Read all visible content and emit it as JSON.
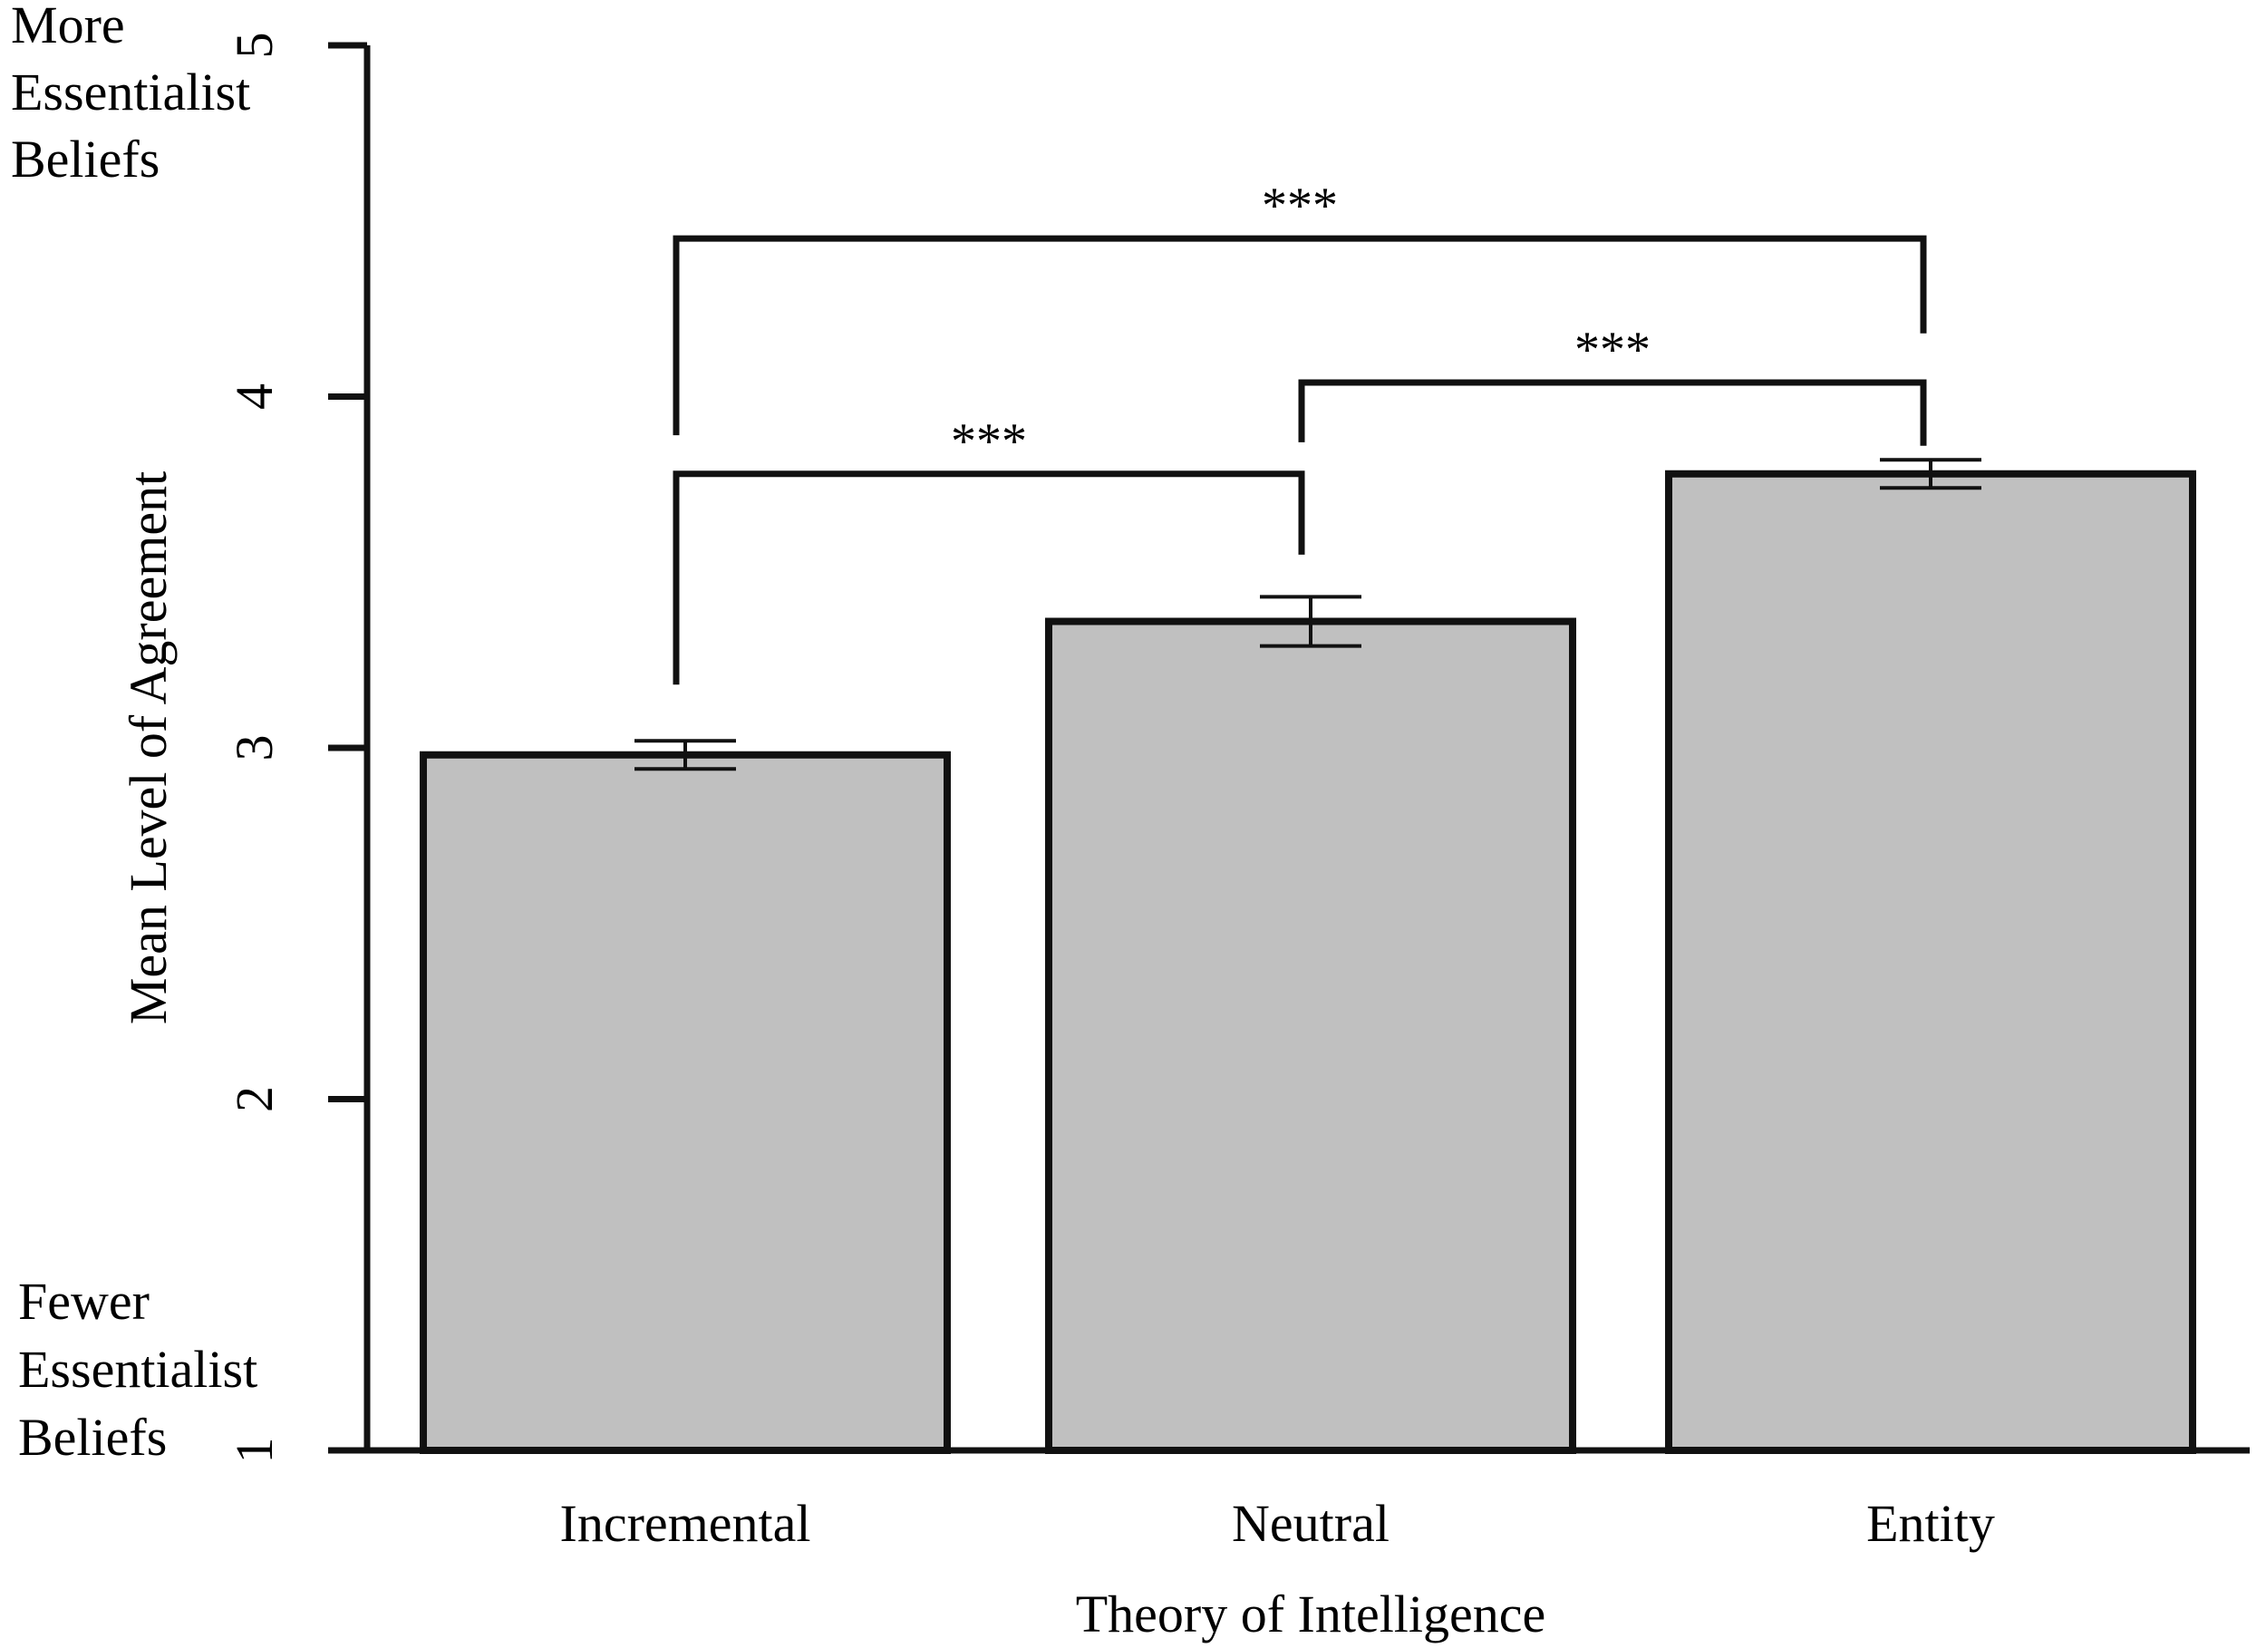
{
  "chart_data": {
    "type": "bar",
    "categories": [
      "Incremental",
      "Neutral",
      "Entity"
    ],
    "values": [
      2.98,
      3.36,
      3.78
    ],
    "error": [
      0.04,
      0.07,
      0.04
    ],
    "xlabel": "Theory of Intelligence",
    "ylabel": "Mean Level of Agreement",
    "ylim": [
      1,
      5
    ],
    "yticks": [
      "1",
      "2",
      "3",
      "4",
      "5"
    ],
    "ytick_values": [
      1,
      2,
      3,
      4,
      5
    ],
    "top_note": [
      "More",
      "Essentialist",
      "Beliefs"
    ],
    "bottom_note": [
      "Fewer",
      "Essentialist",
      "Beliefs"
    ],
    "bar_color": "#c0c0c0",
    "edge_color": "#111111",
    "grid": false,
    "significance": [
      {
        "from": "Incremental",
        "to": "Neutral",
        "label": "***",
        "level": 3.78
      },
      {
        "from": "Neutral",
        "to": "Entity",
        "label": "***",
        "level": 4.04
      },
      {
        "from": "Incremental",
        "to": "Entity",
        "label": "***",
        "level": 4.45
      }
    ]
  }
}
